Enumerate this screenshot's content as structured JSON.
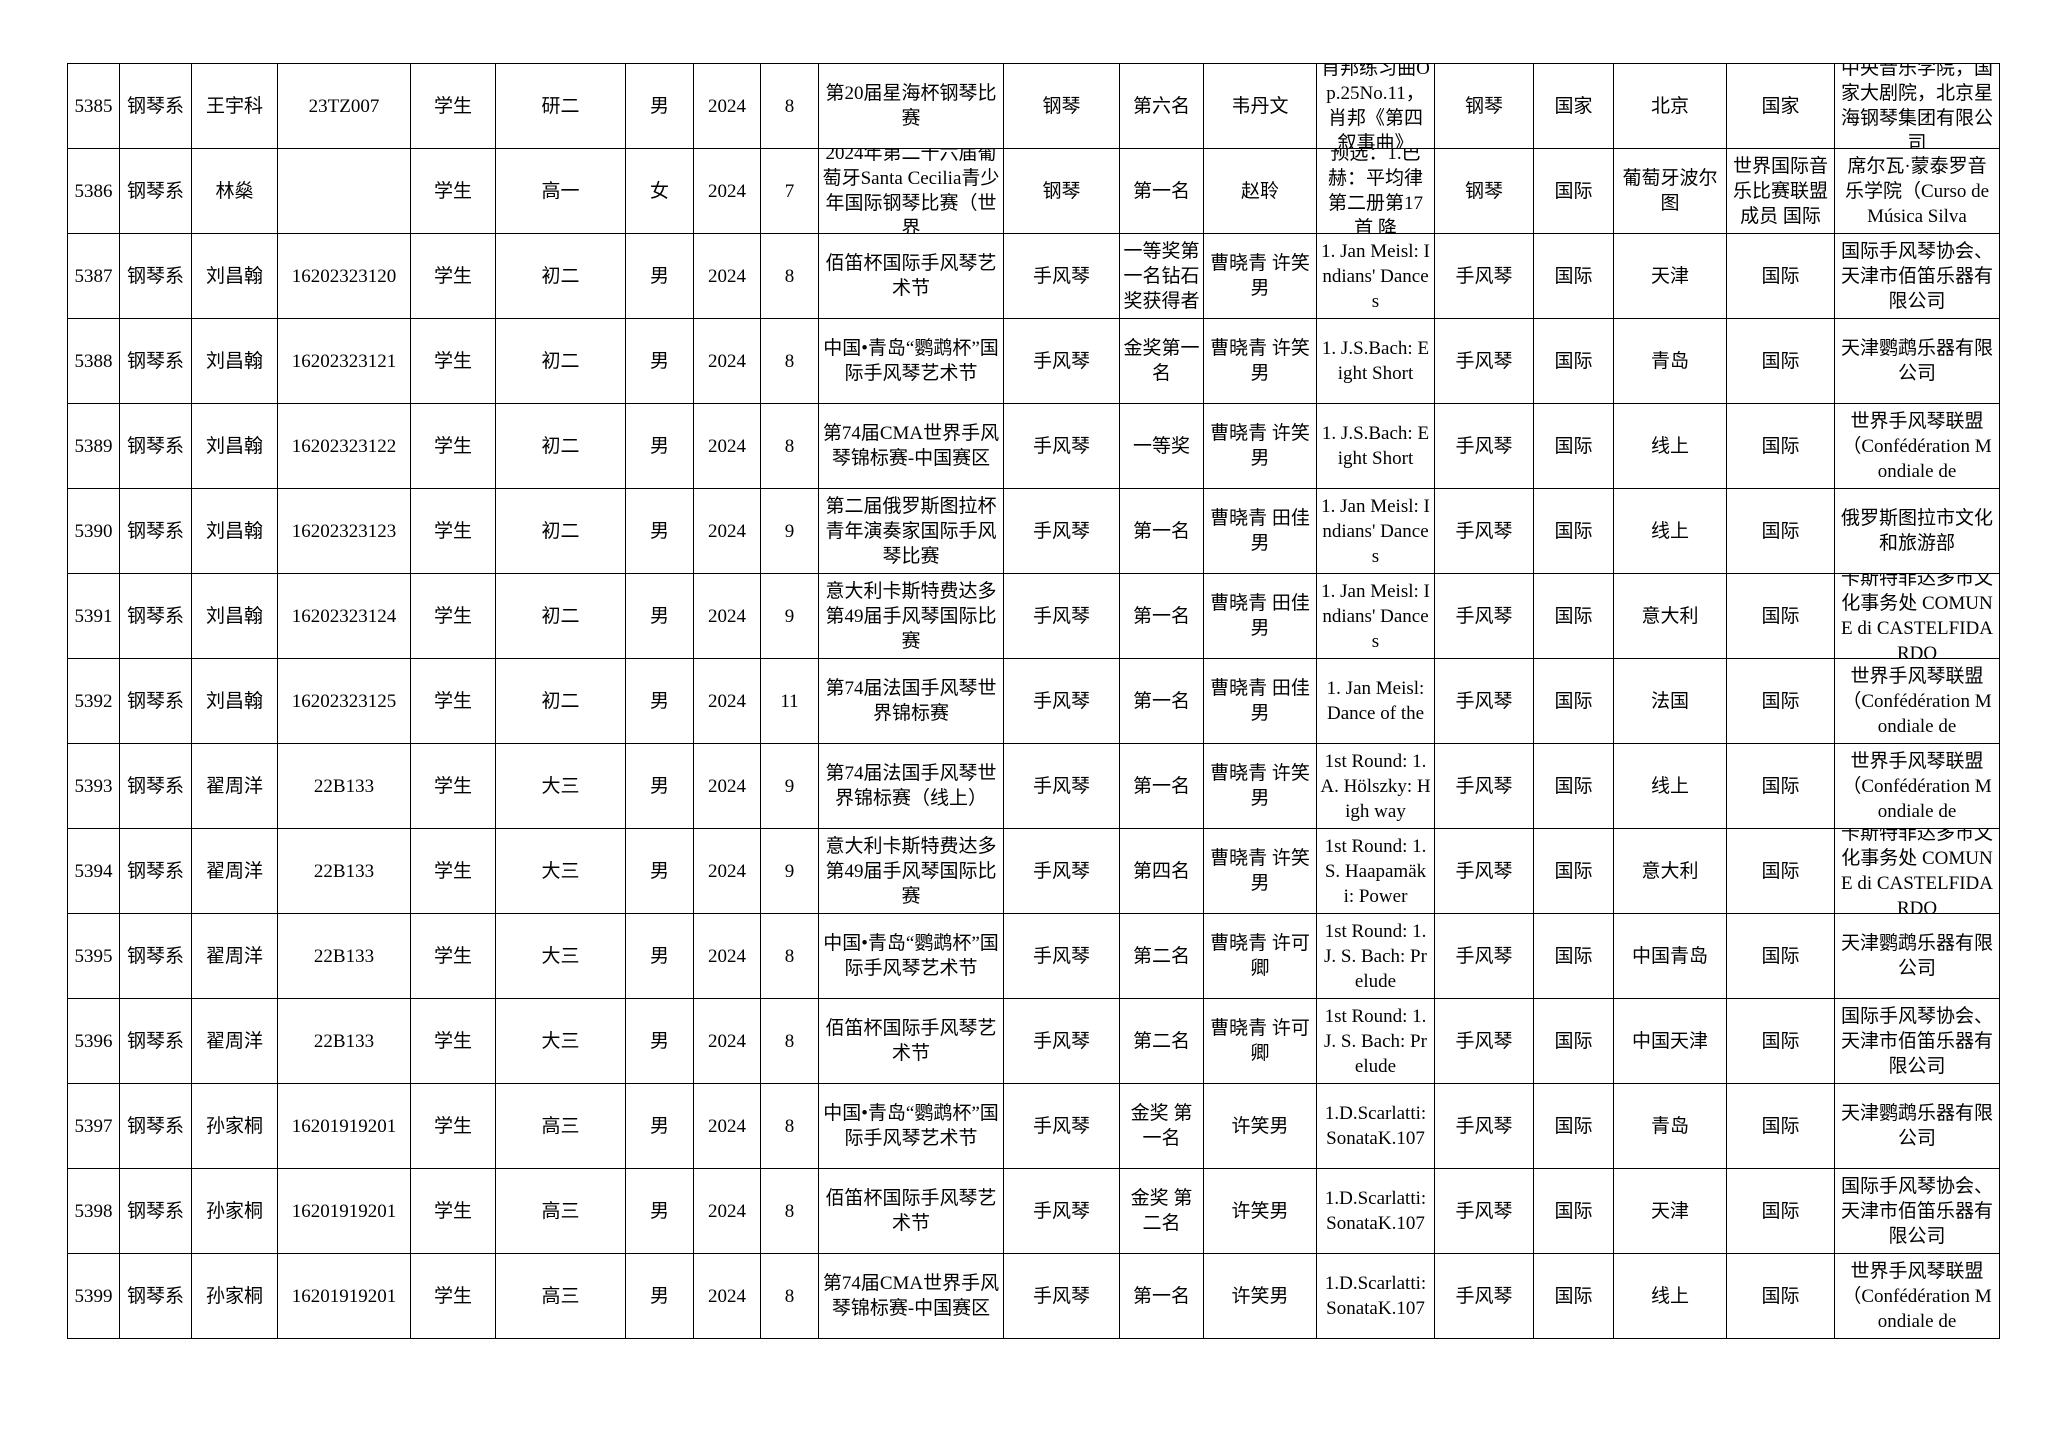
{
  "table": {
    "rows": [
      [
        "5385",
        "钢琴系",
        "王宇科",
        "23TZ007",
        "学生",
        "研二",
        "男",
        "2024",
        "8",
        "第20届星海杯钢琴比赛",
        "钢琴",
        "第六名",
        "韦丹文",
        "肖邦练习曲Op.25No.11，肖邦《第四叙事曲》",
        "钢琴",
        "国家",
        "北京",
        "国家",
        "中央音乐学院，国家大剧院，北京星海钢琴集团有限公司"
      ],
      [
        "5386",
        "钢琴系",
        "林燊",
        null,
        "学生",
        "高一",
        "女",
        "2024",
        "7",
        "2024年第二十六届葡萄牙Santa Cecilia青少年国际钢琴比赛（世界",
        "钢琴",
        "第一名",
        "赵聆",
        "预选：1.巴赫：平均律第二册第17首 降",
        "钢琴",
        "国际",
        "葡萄牙波尔图",
        "世界国际音乐比赛联盟成员 国际",
        "席尔瓦·蒙泰罗音乐学院（Curso de Música Silva"
      ],
      [
        "5387",
        "钢琴系",
        "刘昌翰",
        "16202323120",
        "学生",
        "初二",
        "男",
        "2024",
        "8",
        "佰笛杯国际手风琴艺术节",
        "手风琴",
        "一等奖第一名钻石奖获得者",
        "曹晓青 许笑男",
        "1. Jan Meisl: Indians' Dances",
        "手风琴",
        "国际",
        "天津",
        "国际",
        "国际手风琴协会、天津市佰笛乐器有限公司"
      ],
      [
        "5388",
        "钢琴系",
        "刘昌翰",
        "16202323121",
        "学生",
        "初二",
        "男",
        "2024",
        "8",
        "中国•青岛“鹦鹉杯”国际手风琴艺术节",
        "手风琴",
        "金奖第一名",
        "曹晓青 许笑男",
        "1. J.S.Bach: Eight Short",
        "手风琴",
        "国际",
        "青岛",
        "国际",
        "天津鹦鹉乐器有限公司"
      ],
      [
        "5389",
        "钢琴系",
        "刘昌翰",
        "16202323122",
        "学生",
        "初二",
        "男",
        "2024",
        "8",
        "第74届CMA世界手风琴锦标赛-中国赛区",
        "手风琴",
        "一等奖",
        "曹晓青 许笑男",
        "1. J.S.Bach: Eight Short",
        "手风琴",
        "国际",
        "线上",
        "国际",
        "世界手风琴联盟（Confédération Mondiale de"
      ],
      [
        "5390",
        "钢琴系",
        "刘昌翰",
        "16202323123",
        "学生",
        "初二",
        "男",
        "2024",
        "9",
        "第二届俄罗斯图拉杯青年演奏家国际手风琴比赛",
        "手风琴",
        "第一名",
        "曹晓青 田佳男",
        "1. Jan Meisl: Indians' Dances",
        "手风琴",
        "国际",
        "线上",
        "国际",
        "俄罗斯图拉市文化和旅游部"
      ],
      [
        "5391",
        "钢琴系",
        "刘昌翰",
        "16202323124",
        "学生",
        "初二",
        "男",
        "2024",
        "9",
        "意大利卡斯特费达多第49届手风琴国际比赛",
        "手风琴",
        "第一名",
        "曹晓青 田佳男",
        "1. Jan Meisl: Indians' Dances",
        "手风琴",
        "国际",
        "意大利",
        "国际",
        "卡斯特菲达多市文化事务处 COMUNE di CASTELFIDARDO"
      ],
      [
        "5392",
        "钢琴系",
        "刘昌翰",
        "16202323125",
        "学生",
        "初二",
        "男",
        "2024",
        "11",
        "第74届法国手风琴世界锦标赛",
        "手风琴",
        "第一名",
        "曹晓青 田佳男",
        "1. Jan Meisl: Dance of the",
        "手风琴",
        "国际",
        "法国",
        "国际",
        "世界手风琴联盟（Confédération Mondiale de"
      ],
      [
        "5393",
        "钢琴系",
        "翟周洋",
        "22B133",
        "学生",
        "大三",
        "男",
        "2024",
        "9",
        "第74届法国手风琴世界锦标赛（线上）",
        "手风琴",
        "第一名",
        "曹晓青 许笑男",
        "1st Round: 1. A. Hölszky: High way",
        "手风琴",
        "国际",
        "线上",
        "国际",
        "世界手风琴联盟（Confédération Mondiale de"
      ],
      [
        "5394",
        "钢琴系",
        "翟周洋",
        "22B133",
        "学生",
        "大三",
        "男",
        "2024",
        "9",
        "意大利卡斯特费达多第49届手风琴国际比赛",
        "手风琴",
        "第四名",
        "曹晓青 许笑男",
        "1st Round: 1. S. Haapamäki: Power",
        "手风琴",
        "国际",
        "意大利",
        "国际",
        "卡斯特菲达多市文化事务处 COMUNE di CASTELFIDARDO"
      ],
      [
        "5395",
        "钢琴系",
        "翟周洋",
        "22B133",
        "学生",
        "大三",
        "男",
        "2024",
        "8",
        "中国•青岛“鹦鹉杯”国际手风琴艺术节",
        "手风琴",
        "第二名",
        "曹晓青 许可卿",
        "1st Round: 1. J. S. Bach: Prelude",
        "手风琴",
        "国际",
        "中国青岛",
        "国际",
        "天津鹦鹉乐器有限公司"
      ],
      [
        "5396",
        "钢琴系",
        "翟周洋",
        "22B133",
        "学生",
        "大三",
        "男",
        "2024",
        "8",
        "佰笛杯国际手风琴艺术节",
        "手风琴",
        "第二名",
        "曹晓青 许可卿",
        "1st Round: 1. J. S. Bach: Prelude",
        "手风琴",
        "国际",
        "中国天津",
        "国际",
        "国际手风琴协会、天津市佰笛乐器有限公司"
      ],
      [
        "5397",
        "钢琴系",
        "孙家桐",
        "16201919201",
        "学生",
        "高三",
        "男",
        "2024",
        "8",
        "中国•青岛“鹦鹉杯”国际手风琴艺术节",
        "手风琴",
        "金奖 第一名",
        "许笑男",
        "1.D.Scarlatti: SonataK.107",
        "手风琴",
        "国际",
        "青岛",
        "国际",
        "天津鹦鹉乐器有限公司"
      ],
      [
        "5398",
        "钢琴系",
        "孙家桐",
        "16201919201",
        "学生",
        "高三",
        "男",
        "2024",
        "8",
        "佰笛杯国际手风琴艺术节",
        "手风琴",
        "金奖 第二名",
        "许笑男",
        "1.D.Scarlatti: SonataK.107",
        "手风琴",
        "国际",
        "天津",
        "国际",
        "国际手风琴协会、天津市佰笛乐器有限公司"
      ],
      [
        "5399",
        "钢琴系",
        "孙家桐",
        "16201919201",
        "学生",
        "高三",
        "男",
        "2024",
        "8",
        "第74届CMA世界手风琴锦标赛-中国赛区",
        "手风琴",
        "第一名",
        "许笑男",
        "1.D.Scarlatti: SonataK.107",
        "手风琴",
        "国际",
        "线上",
        "国际",
        "世界手风琴联盟（Confédération Mondiale de"
      ]
    ]
  }
}
